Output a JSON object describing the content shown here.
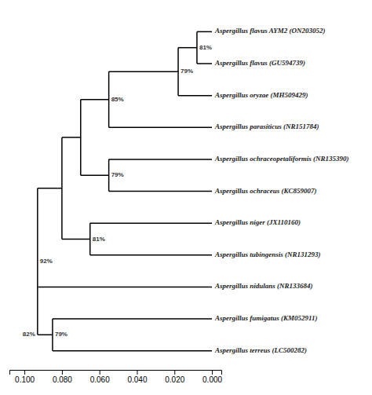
{
  "chart_data": {
    "type": "tree",
    "xlim": [
      0.108,
      -0.005
    ],
    "xticks": [
      {
        "value": 0.0,
        "label": "0.000"
      },
      {
        "value": 0.02,
        "label": "0.020"
      },
      {
        "value": 0.04,
        "label": "0.040"
      },
      {
        "value": 0.06,
        "label": "0.060"
      },
      {
        "value": 0.08,
        "label": "0.080"
      },
      {
        "value": 0.1,
        "label": "0.100"
      }
    ],
    "tick_labels": "x",
    "data_labels": true,
    "color": "#000000",
    "tree": {
      "x": 0.093,
      "value": 92,
      "value_label": "92%",
      "children": [
        {
          "x": 0.08,
          "children": [
            {
              "x": 0.07,
              "children": [
                {
                  "x": 0.055,
                  "value": 85,
                  "value_label": "85%",
                  "children": [
                    {
                      "x": 0.018,
                      "value": 79,
                      "value_label": "79%",
                      "children": [
                        {
                          "x": 0.008,
                          "value": 81,
                          "value_label": "81%",
                          "children": [
                            {
                              "name": "Aspergillus flavus AYM2 (ON203052)",
                              "x": 0.0
                            },
                            {
                              "name": "Aspergillus flavus (GU594739)",
                              "x": 0.0
                            }
                          ]
                        },
                        {
                          "name": "Aspergillus oryzae (MH509429)",
                          "x": 0.0
                        }
                      ]
                    },
                    {
                      "name": "Aspergillus parasiticus (NR151784)",
                      "x": 0.0
                    }
                  ]
                },
                {
                  "x": 0.055,
                  "value": 79,
                  "value_label": "79%",
                  "children": [
                    {
                      "name": "Aspergillus ochraceopetaliformis (NR135390)",
                      "x": 0.0
                    },
                    {
                      "name": "Aspergillus ochraceus (KC859007)",
                      "x": 0.0
                    }
                  ]
                }
              ]
            },
            {
              "x": 0.065,
              "value": 81,
              "value_label": "81%",
              "children": [
                {
                  "name": "Aspergillus niger (JX110160)",
                  "x": 0.0
                },
                {
                  "name": "Aspergillus tubingensis (NR131293)",
                  "x": 0.0
                }
              ]
            }
          ]
        },
        {
          "name": "Aspergillus nidulans (NR133684)",
          "x": 0.0
        },
        {
          "x": 0.093,
          "value": 82,
          "value_label": "82%",
          "children": [
            {
              "x": 0.085,
              "value": 79,
              "value_label": "79%",
              "children": [
                {
                  "name": "Aspergillus fumigatus (KM052911)",
                  "x": 0.0
                },
                {
                  "name": "Aspergillus terreus (LC500282)",
                  "x": 0.0
                }
              ]
            }
          ]
        }
      ]
    }
  }
}
